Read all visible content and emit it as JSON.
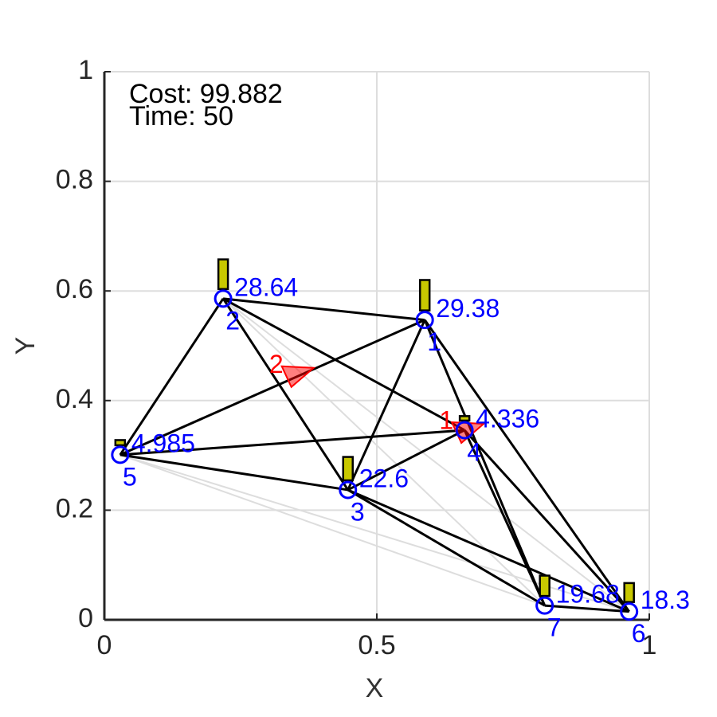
{
  "chart_data": {
    "type": "network",
    "annotations": [
      "Cost: 99.882",
      "Time: 50"
    ],
    "x_label": "X",
    "y_label": "Y",
    "xlim": [
      0,
      1
    ],
    "ylim": [
      0,
      1
    ],
    "xticks": [
      0,
      0.5,
      1
    ],
    "yticks": [
      0,
      0.2,
      0.4,
      0.6,
      0.8,
      1
    ],
    "grid": true,
    "nodes": {
      "labels": [
        "1",
        "2",
        "3",
        "4",
        "5",
        "6",
        "7"
      ],
      "x": [
        0.588,
        0.218,
        0.447,
        0.661,
        0.029,
        0.963,
        0.808
      ],
      "y": [
        0.547,
        0.586,
        0.237,
        0.346,
        0.301,
        0.015,
        0.026
      ],
      "values": [
        29.38,
        28.64,
        22.6,
        4.336,
        4.985,
        18.3,
        19.68
      ],
      "color": "#0000ff",
      "bar_color": "#c8c800"
    },
    "edges": [
      [
        "2",
        "1"
      ],
      [
        "2",
        "5"
      ],
      [
        "2",
        "3"
      ],
      [
        "2",
        "4"
      ],
      [
        "5",
        "1"
      ],
      [
        "5",
        "4"
      ],
      [
        "5",
        "3"
      ],
      [
        "1",
        "3"
      ],
      [
        "1",
        "7"
      ],
      [
        "1",
        "6"
      ],
      [
        "4",
        "7"
      ],
      [
        "4",
        "6"
      ],
      [
        "3",
        "4"
      ],
      [
        "3",
        "7"
      ],
      [
        "3",
        "6"
      ],
      [
        "7",
        "6"
      ]
    ],
    "edge_color": "#000000",
    "faint_edges": [
      [
        "5",
        "6"
      ],
      [
        "5",
        "7"
      ],
      [
        "2",
        "7"
      ],
      [
        "2",
        "6"
      ],
      [
        "3",
        "6"
      ]
    ],
    "faint_edge_color": "#dddddd",
    "agents": [
      {
        "name": "1",
        "color": "#ff0000",
        "x": 0.661,
        "y": 0.346
      },
      {
        "name": "2",
        "color": "#ff0000",
        "x": 0.349,
        "y": 0.448
      }
    ]
  }
}
